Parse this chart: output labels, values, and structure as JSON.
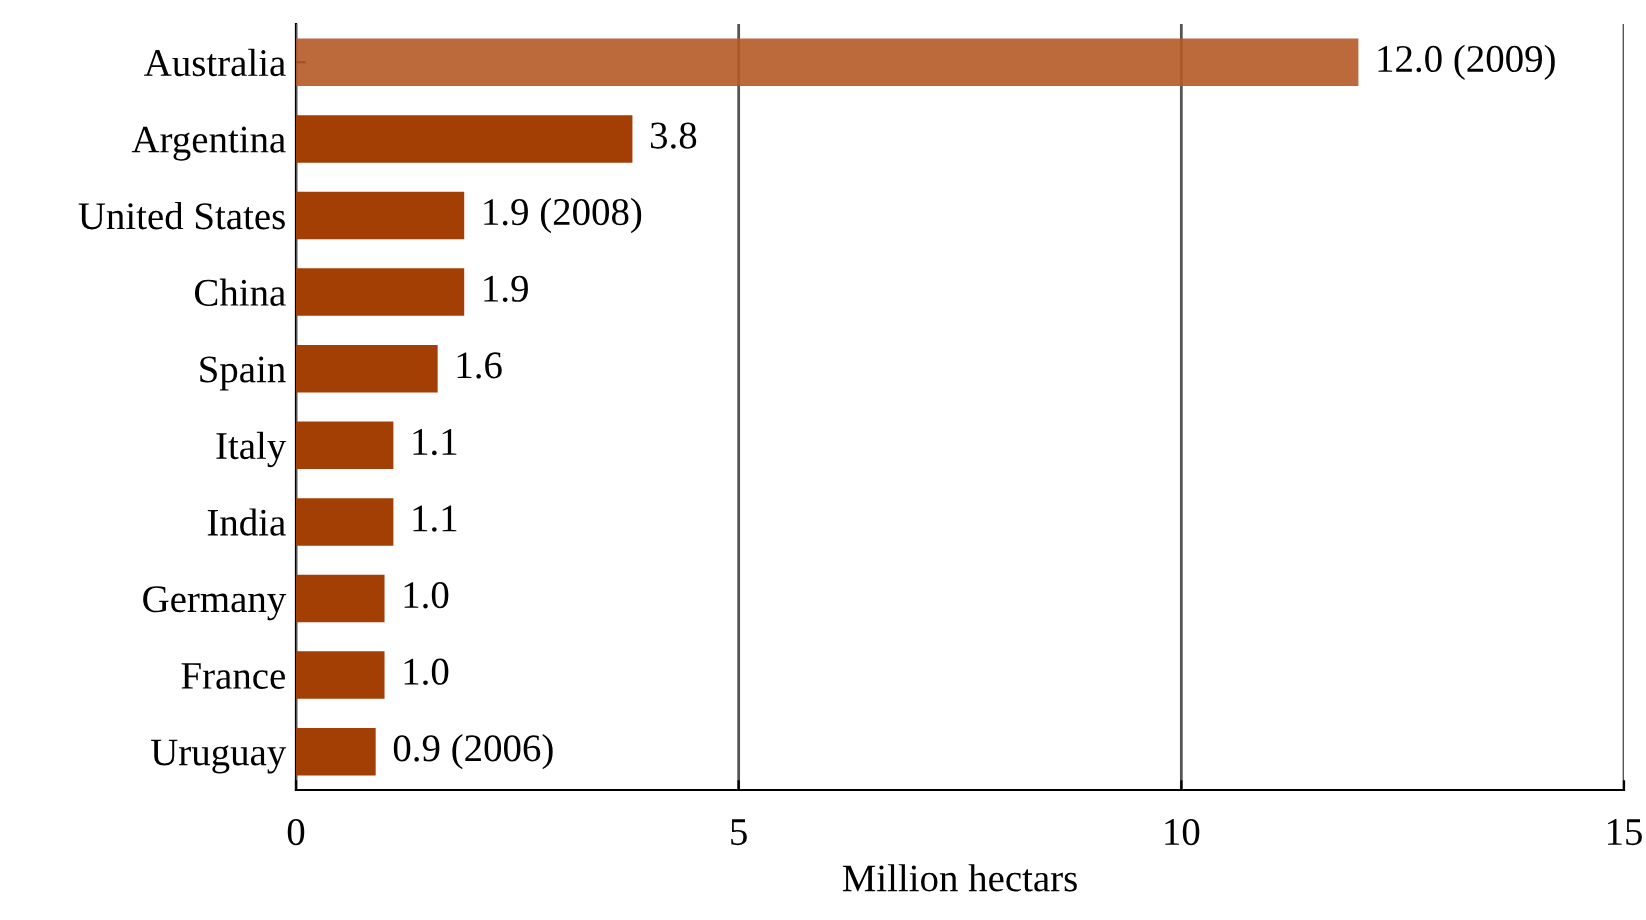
{
  "chart_data": {
    "type": "bar",
    "orientation": "horizontal",
    "xlabel": "Million hectars",
    "categories": [
      "Australia",
      "Argentina",
      "United States",
      "China",
      "Spain",
      "Italy",
      "India",
      "Germany",
      "France",
      "Uruguay"
    ],
    "values": [
      12.0,
      3.8,
      1.9,
      1.9,
      1.6,
      1.1,
      1.1,
      1.0,
      1.0,
      0.9
    ],
    "value_labels": [
      "12.0 (2009)",
      "3.8",
      "1.9 (2008)",
      "1.9",
      "1.6",
      "1.1",
      "1.1",
      "1.0",
      "1.0",
      "0.9 (2006)"
    ],
    "colors": [
      "#b55a26",
      "#a33f04",
      "#a33f04",
      "#a33f04",
      "#a33f04",
      "#a33f04",
      "#a33f04",
      "#a33f04",
      "#a33f04",
      "#a33f04"
    ],
    "xlim": [
      0,
      15
    ],
    "xticks": [
      0,
      5,
      10,
      15
    ],
    "grid": "x"
  }
}
